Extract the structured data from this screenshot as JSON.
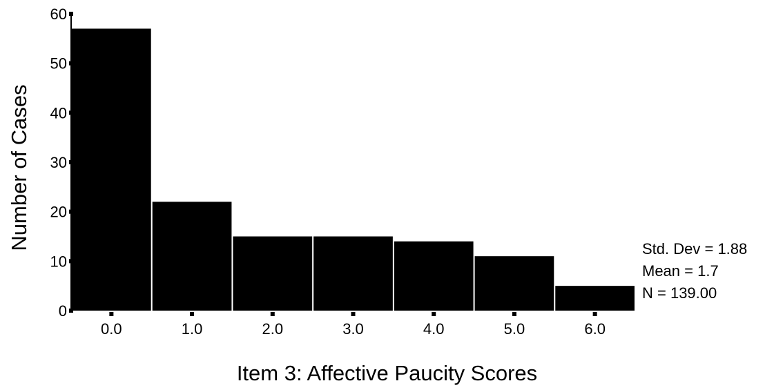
{
  "chart_data": {
    "type": "bar",
    "title": "",
    "xlabel": "Item 3: Affective Paucity Scores",
    "ylabel": "Number of Cases",
    "categories": [
      "0.0",
      "1.0",
      "2.0",
      "3.0",
      "4.0",
      "5.0",
      "6.0"
    ],
    "values": [
      57,
      22,
      15,
      15,
      14,
      11,
      5
    ],
    "ylim": [
      0,
      60
    ],
    "yticks": [
      "0",
      "10",
      "20",
      "30",
      "40",
      "50",
      "60"
    ],
    "grid": false,
    "bar_color": "#000000"
  },
  "stats": {
    "std_dev": "Std. Dev = 1.88",
    "mean": "Mean = 1.7",
    "n": "N = 139.00"
  }
}
